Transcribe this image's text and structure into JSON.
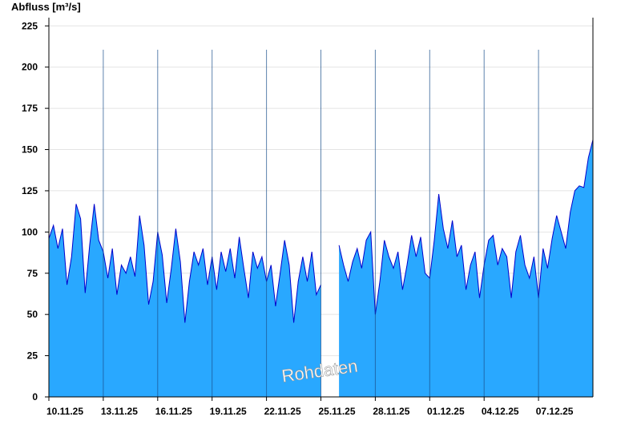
{
  "chart_data": {
    "type": "area",
    "title": "",
    "xlabel": "",
    "ylabel": "Abfluss [m³/s]",
    "ylim": [
      0,
      230
    ],
    "yticks": [
      0,
      25,
      50,
      75,
      100,
      125,
      150,
      175,
      200,
      225
    ],
    "xlim": [
      "2025-11-10",
      "2025-12-10"
    ],
    "xtick_labels": [
      "10.11.25",
      "13.11.25",
      "16.11.25",
      "19.11.25",
      "22.11.25",
      "25.11.25",
      "28.11.25",
      "01.12.25",
      "04.12.25",
      "07.12.25"
    ],
    "grid": true,
    "watermark": "Rohdaten",
    "colors": {
      "fill": "#29a8ff",
      "line": "#0000cc",
      "grid": "#e4e4e4",
      "axis": "#000000"
    },
    "series": [
      {
        "segments": [
          [
            [
              "2025-11-10 00:00",
              96
            ],
            [
              "2025-11-10 06:00",
              104
            ],
            [
              "2025-11-10 12:00",
              90
            ],
            [
              "2025-11-10 18:00",
              102
            ],
            [
              "2025-11-11 00:00",
              68
            ],
            [
              "2025-11-11 06:00",
              85
            ],
            [
              "2025-11-11 12:00",
              117
            ],
            [
              "2025-11-11 18:00",
              108
            ],
            [
              "2025-11-12 00:00",
              63
            ],
            [
              "2025-11-12 06:00",
              92
            ],
            [
              "2025-11-12 12:00",
              117
            ],
            [
              "2025-11-12 18:00",
              95
            ],
            [
              "2025-11-13 00:00",
              88
            ],
            [
              "2025-11-13 06:00",
              72
            ],
            [
              "2025-11-13 12:00",
              90
            ],
            [
              "2025-11-13 18:00",
              62
            ],
            [
              "2025-11-14 00:00",
              80
            ],
            [
              "2025-11-14 06:00",
              75
            ],
            [
              "2025-11-14 12:00",
              85
            ],
            [
              "2025-11-14 18:00",
              73
            ],
            [
              "2025-11-15 00:00",
              110
            ],
            [
              "2025-11-15 06:00",
              92
            ],
            [
              "2025-11-15 12:00",
              56
            ],
            [
              "2025-11-15 18:00",
              70
            ],
            [
              "2025-11-16 00:00",
              100
            ],
            [
              "2025-11-16 06:00",
              86
            ],
            [
              "2025-11-16 12:00",
              57
            ],
            [
              "2025-11-16 18:00",
              78
            ],
            [
              "2025-11-17 00:00",
              102
            ],
            [
              "2025-11-17 06:00",
              82
            ],
            [
              "2025-11-17 12:00",
              45
            ],
            [
              "2025-11-17 18:00",
              70
            ],
            [
              "2025-11-18 00:00",
              88
            ],
            [
              "2025-11-18 06:00",
              80
            ],
            [
              "2025-11-18 12:00",
              90
            ],
            [
              "2025-11-18 18:00",
              68
            ],
            [
              "2025-11-19 00:00",
              85
            ],
            [
              "2025-11-19 06:00",
              65
            ],
            [
              "2025-11-19 12:00",
              88
            ],
            [
              "2025-11-19 18:00",
              76
            ],
            [
              "2025-11-20 00:00",
              90
            ],
            [
              "2025-11-20 06:00",
              72
            ],
            [
              "2025-11-20 12:00",
              97
            ],
            [
              "2025-11-20 18:00",
              78
            ],
            [
              "2025-11-21 00:00",
              60
            ],
            [
              "2025-11-21 06:00",
              88
            ],
            [
              "2025-11-21 12:00",
              78
            ],
            [
              "2025-11-21 18:00",
              85
            ],
            [
              "2025-11-22 00:00",
              70
            ],
            [
              "2025-11-22 06:00",
              80
            ],
            [
              "2025-11-22 12:00",
              55
            ],
            [
              "2025-11-22 18:00",
              75
            ],
            [
              "2025-11-23 00:00",
              95
            ],
            [
              "2025-11-23 06:00",
              80
            ],
            [
              "2025-11-23 12:00",
              45
            ],
            [
              "2025-11-23 18:00",
              70
            ],
            [
              "2025-11-24 00:00",
              85
            ],
            [
              "2025-11-24 06:00",
              70
            ],
            [
              "2025-11-24 12:00",
              88
            ],
            [
              "2025-11-24 18:00",
              62
            ],
            [
              "2025-11-25 00:00",
              68
            ]
          ],
          [
            [
              "2025-11-26 00:00",
              92
            ],
            [
              "2025-11-26 06:00",
              80
            ],
            [
              "2025-11-26 12:00",
              70
            ],
            [
              "2025-11-26 18:00",
              82
            ],
            [
              "2025-11-27 00:00",
              90
            ],
            [
              "2025-11-27 06:00",
              78
            ],
            [
              "2025-11-27 12:00",
              95
            ],
            [
              "2025-11-27 18:00",
              100
            ],
            [
              "2025-11-28 00:00",
              50
            ],
            [
              "2025-11-28 06:00",
              70
            ],
            [
              "2025-11-28 12:00",
              95
            ],
            [
              "2025-11-28 18:00",
              85
            ],
            [
              "2025-11-29 00:00",
              78
            ],
            [
              "2025-11-29 06:00",
              88
            ],
            [
              "2025-11-29 12:00",
              65
            ],
            [
              "2025-11-29 18:00",
              80
            ],
            [
              "2025-11-30 00:00",
              98
            ],
            [
              "2025-11-30 06:00",
              85
            ],
            [
              "2025-11-30 12:00",
              97
            ],
            [
              "2025-11-30 18:00",
              75
            ],
            [
              "2025-12-01 00:00",
              72
            ],
            [
              "2025-12-01 06:00",
              95
            ],
            [
              "2025-12-01 12:00",
              123
            ],
            [
              "2025-12-01 18:00",
              102
            ],
            [
              "2025-12-02 00:00",
              90
            ],
            [
              "2025-12-02 06:00",
              107
            ],
            [
              "2025-12-02 12:00",
              85
            ],
            [
              "2025-12-02 18:00",
              92
            ],
            [
              "2025-12-03 00:00",
              65
            ],
            [
              "2025-12-03 06:00",
              80
            ],
            [
              "2025-12-03 12:00",
              88
            ],
            [
              "2025-12-03 18:00",
              60
            ],
            [
              "2025-12-04 00:00",
              80
            ],
            [
              "2025-12-04 06:00",
              95
            ],
            [
              "2025-12-04 12:00",
              98
            ],
            [
              "2025-12-04 18:00",
              80
            ],
            [
              "2025-12-05 00:00",
              90
            ],
            [
              "2025-12-05 06:00",
              85
            ],
            [
              "2025-12-05 12:00",
              60
            ],
            [
              "2025-12-05 18:00",
              88
            ],
            [
              "2025-12-06 00:00",
              98
            ],
            [
              "2025-12-06 06:00",
              80
            ],
            [
              "2025-12-06 12:00",
              72
            ],
            [
              "2025-12-06 18:00",
              85
            ],
            [
              "2025-12-07 00:00",
              60
            ],
            [
              "2025-12-07 06:00",
              90
            ],
            [
              "2025-12-07 12:00",
              78
            ],
            [
              "2025-12-07 18:00",
              96
            ],
            [
              "2025-12-08 00:00",
              110
            ],
            [
              "2025-12-08 06:00",
              100
            ],
            [
              "2025-12-08 12:00",
              90
            ],
            [
              "2025-12-08 18:00",
              112
            ],
            [
              "2025-12-09 00:00",
              125
            ],
            [
              "2025-12-09 06:00",
              128
            ],
            [
              "2025-12-09 12:00",
              127
            ],
            [
              "2025-12-09 18:00",
              145
            ],
            [
              "2025-12-10 00:00",
              156
            ]
          ]
        ]
      }
    ]
  }
}
